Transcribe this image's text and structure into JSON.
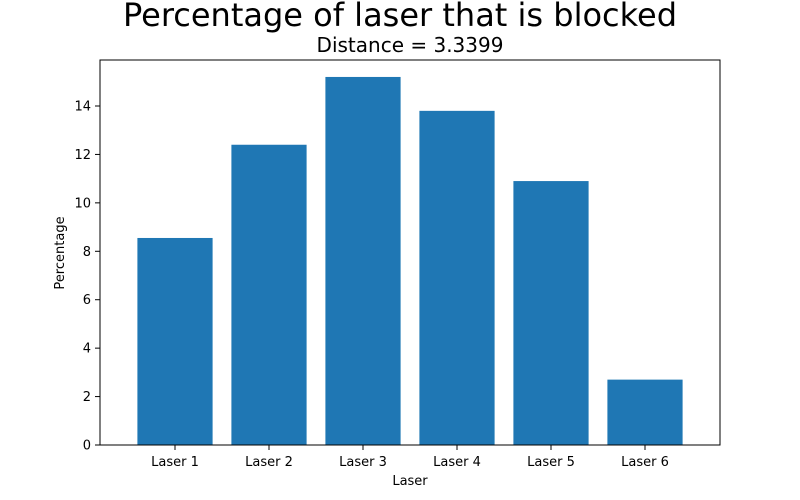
{
  "chart_data": {
    "type": "bar",
    "title": "Percentage of laser that is blocked",
    "subtitle": "Distance = 3.3399",
    "xlabel": "Laser",
    "ylabel": "Percentage",
    "categories": [
      "Laser 1",
      "Laser 2",
      "Laser 3",
      "Laser 4",
      "Laser 5",
      "Laser 6"
    ],
    "values": [
      8.55,
      12.4,
      15.2,
      13.8,
      10.9,
      2.7
    ],
    "ylim": [
      0,
      15.9
    ],
    "yticks": [
      0,
      2,
      4,
      6,
      8,
      10,
      12,
      14
    ],
    "grid": false,
    "bar_color": "#1f77b4"
  }
}
